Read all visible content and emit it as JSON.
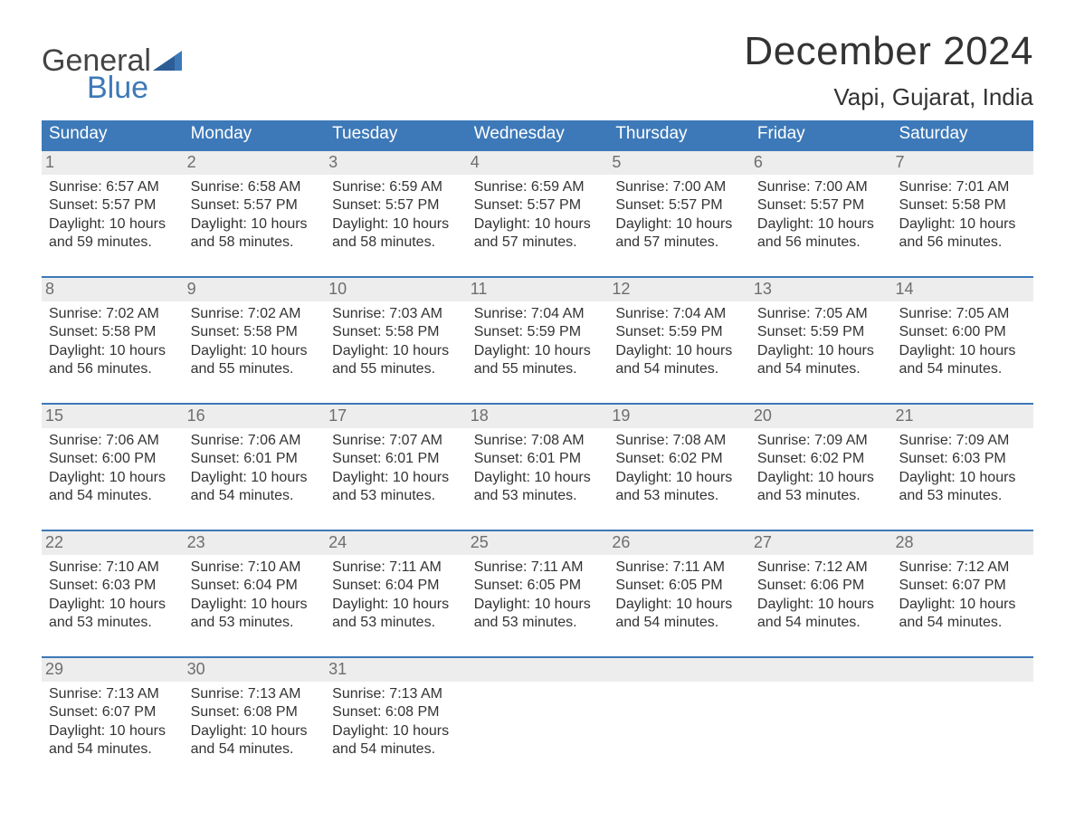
{
  "brand": {
    "line1": "General",
    "line2": "Blue"
  },
  "title": "December 2024",
  "location": "Vapi, Gujarat, India",
  "colors": {
    "header_bg": "#3d79b8",
    "header_text": "#ffffff",
    "daynum_bg": "#ededed",
    "daynum_text": "#6e6e6e",
    "body_text": "#333333",
    "accent": "#3d79b8",
    "page_bg": "#ffffff"
  },
  "typography": {
    "title_fontsize_pt": 33,
    "location_fontsize_pt": 20,
    "header_fontsize_pt": 14,
    "daynum_fontsize_pt": 13,
    "info_fontsize_pt": 12
  },
  "day_headers": [
    "Sunday",
    "Monday",
    "Tuesday",
    "Wednesday",
    "Thursday",
    "Friday",
    "Saturday"
  ],
  "weeks": [
    [
      {
        "day": 1,
        "sunrise": "Sunrise: 6:57 AM",
        "sunset": "Sunset: 5:57 PM",
        "daylight1": "Daylight: 10 hours",
        "daylight2": "and 59 minutes."
      },
      {
        "day": 2,
        "sunrise": "Sunrise: 6:58 AM",
        "sunset": "Sunset: 5:57 PM",
        "daylight1": "Daylight: 10 hours",
        "daylight2": "and 58 minutes."
      },
      {
        "day": 3,
        "sunrise": "Sunrise: 6:59 AM",
        "sunset": "Sunset: 5:57 PM",
        "daylight1": "Daylight: 10 hours",
        "daylight2": "and 58 minutes."
      },
      {
        "day": 4,
        "sunrise": "Sunrise: 6:59 AM",
        "sunset": "Sunset: 5:57 PM",
        "daylight1": "Daylight: 10 hours",
        "daylight2": "and 57 minutes."
      },
      {
        "day": 5,
        "sunrise": "Sunrise: 7:00 AM",
        "sunset": "Sunset: 5:57 PM",
        "daylight1": "Daylight: 10 hours",
        "daylight2": "and 57 minutes."
      },
      {
        "day": 6,
        "sunrise": "Sunrise: 7:00 AM",
        "sunset": "Sunset: 5:57 PM",
        "daylight1": "Daylight: 10 hours",
        "daylight2": "and 56 minutes."
      },
      {
        "day": 7,
        "sunrise": "Sunrise: 7:01 AM",
        "sunset": "Sunset: 5:58 PM",
        "daylight1": "Daylight: 10 hours",
        "daylight2": "and 56 minutes."
      }
    ],
    [
      {
        "day": 8,
        "sunrise": "Sunrise: 7:02 AM",
        "sunset": "Sunset: 5:58 PM",
        "daylight1": "Daylight: 10 hours",
        "daylight2": "and 56 minutes."
      },
      {
        "day": 9,
        "sunrise": "Sunrise: 7:02 AM",
        "sunset": "Sunset: 5:58 PM",
        "daylight1": "Daylight: 10 hours",
        "daylight2": "and 55 minutes."
      },
      {
        "day": 10,
        "sunrise": "Sunrise: 7:03 AM",
        "sunset": "Sunset: 5:58 PM",
        "daylight1": "Daylight: 10 hours",
        "daylight2": "and 55 minutes."
      },
      {
        "day": 11,
        "sunrise": "Sunrise: 7:04 AM",
        "sunset": "Sunset: 5:59 PM",
        "daylight1": "Daylight: 10 hours",
        "daylight2": "and 55 minutes."
      },
      {
        "day": 12,
        "sunrise": "Sunrise: 7:04 AM",
        "sunset": "Sunset: 5:59 PM",
        "daylight1": "Daylight: 10 hours",
        "daylight2": "and 54 minutes."
      },
      {
        "day": 13,
        "sunrise": "Sunrise: 7:05 AM",
        "sunset": "Sunset: 5:59 PM",
        "daylight1": "Daylight: 10 hours",
        "daylight2": "and 54 minutes."
      },
      {
        "day": 14,
        "sunrise": "Sunrise: 7:05 AM",
        "sunset": "Sunset: 6:00 PM",
        "daylight1": "Daylight: 10 hours",
        "daylight2": "and 54 minutes."
      }
    ],
    [
      {
        "day": 15,
        "sunrise": "Sunrise: 7:06 AM",
        "sunset": "Sunset: 6:00 PM",
        "daylight1": "Daylight: 10 hours",
        "daylight2": "and 54 minutes."
      },
      {
        "day": 16,
        "sunrise": "Sunrise: 7:06 AM",
        "sunset": "Sunset: 6:01 PM",
        "daylight1": "Daylight: 10 hours",
        "daylight2": "and 54 minutes."
      },
      {
        "day": 17,
        "sunrise": "Sunrise: 7:07 AM",
        "sunset": "Sunset: 6:01 PM",
        "daylight1": "Daylight: 10 hours",
        "daylight2": "and 53 minutes."
      },
      {
        "day": 18,
        "sunrise": "Sunrise: 7:08 AM",
        "sunset": "Sunset: 6:01 PM",
        "daylight1": "Daylight: 10 hours",
        "daylight2": "and 53 minutes."
      },
      {
        "day": 19,
        "sunrise": "Sunrise: 7:08 AM",
        "sunset": "Sunset: 6:02 PM",
        "daylight1": "Daylight: 10 hours",
        "daylight2": "and 53 minutes."
      },
      {
        "day": 20,
        "sunrise": "Sunrise: 7:09 AM",
        "sunset": "Sunset: 6:02 PM",
        "daylight1": "Daylight: 10 hours",
        "daylight2": "and 53 minutes."
      },
      {
        "day": 21,
        "sunrise": "Sunrise: 7:09 AM",
        "sunset": "Sunset: 6:03 PM",
        "daylight1": "Daylight: 10 hours",
        "daylight2": "and 53 minutes."
      }
    ],
    [
      {
        "day": 22,
        "sunrise": "Sunrise: 7:10 AM",
        "sunset": "Sunset: 6:03 PM",
        "daylight1": "Daylight: 10 hours",
        "daylight2": "and 53 minutes."
      },
      {
        "day": 23,
        "sunrise": "Sunrise: 7:10 AM",
        "sunset": "Sunset: 6:04 PM",
        "daylight1": "Daylight: 10 hours",
        "daylight2": "and 53 minutes."
      },
      {
        "day": 24,
        "sunrise": "Sunrise: 7:11 AM",
        "sunset": "Sunset: 6:04 PM",
        "daylight1": "Daylight: 10 hours",
        "daylight2": "and 53 minutes."
      },
      {
        "day": 25,
        "sunrise": "Sunrise: 7:11 AM",
        "sunset": "Sunset: 6:05 PM",
        "daylight1": "Daylight: 10 hours",
        "daylight2": "and 53 minutes."
      },
      {
        "day": 26,
        "sunrise": "Sunrise: 7:11 AM",
        "sunset": "Sunset: 6:05 PM",
        "daylight1": "Daylight: 10 hours",
        "daylight2": "and 54 minutes."
      },
      {
        "day": 27,
        "sunrise": "Sunrise: 7:12 AM",
        "sunset": "Sunset: 6:06 PM",
        "daylight1": "Daylight: 10 hours",
        "daylight2": "and 54 minutes."
      },
      {
        "day": 28,
        "sunrise": "Sunrise: 7:12 AM",
        "sunset": "Sunset: 6:07 PM",
        "daylight1": "Daylight: 10 hours",
        "daylight2": "and 54 minutes."
      }
    ],
    [
      {
        "day": 29,
        "sunrise": "Sunrise: 7:13 AM",
        "sunset": "Sunset: 6:07 PM",
        "daylight1": "Daylight: 10 hours",
        "daylight2": "and 54 minutes."
      },
      {
        "day": 30,
        "sunrise": "Sunrise: 7:13 AM",
        "sunset": "Sunset: 6:08 PM",
        "daylight1": "Daylight: 10 hours",
        "daylight2": "and 54 minutes."
      },
      {
        "day": 31,
        "sunrise": "Sunrise: 7:13 AM",
        "sunset": "Sunset: 6:08 PM",
        "daylight1": "Daylight: 10 hours",
        "daylight2": "and 54 minutes."
      },
      null,
      null,
      null,
      null
    ]
  ]
}
